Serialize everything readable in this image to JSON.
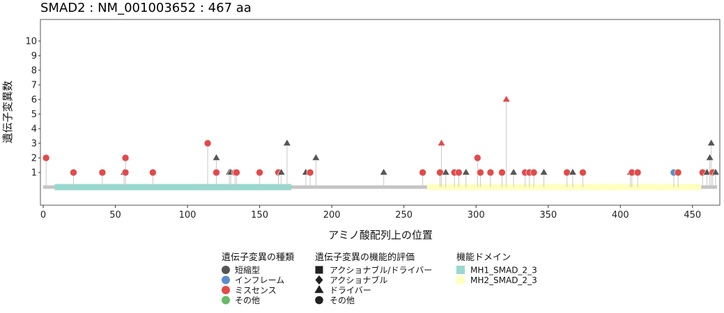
{
  "title": "SMAD2 : NM_001003652 : 467 aa",
  "chart_data": {
    "type": "lollipop",
    "protein_length": 467,
    "xlabel": "アミノ酸配列上の位置",
    "ylabel": "遺伝子変異数",
    "xlim": [
      0,
      467
    ],
    "ylim": [
      0,
      10
    ],
    "xticks": [
      0,
      50,
      100,
      150,
      200,
      250,
      300,
      350,
      400,
      450
    ],
    "yticks": [
      1,
      2,
      3,
      4,
      5,
      6,
      7,
      8,
      9,
      10
    ],
    "grid": false,
    "legend_position": "bottom",
    "domains": [
      {
        "name": "MH1_SMAD_2_3",
        "start": 8,
        "end": 172,
        "color": "#99d8cf"
      },
      {
        "name": "MH2_SMAD_2_3",
        "start": 266,
        "end": 456,
        "color": "#ffffc0"
      }
    ],
    "mutations": [
      {
        "x": 2,
        "y": 2,
        "type": "missense",
        "shape": "circle"
      },
      {
        "x": 21,
        "y": 1,
        "type": "missense",
        "shape": "circle"
      },
      {
        "x": 41,
        "y": 1,
        "type": "missense",
        "shape": "circle"
      },
      {
        "x": 56,
        "y": 1,
        "type": "truncating",
        "shape": "triangle"
      },
      {
        "x": 57,
        "y": 1,
        "type": "missense",
        "shape": "circle"
      },
      {
        "x": 57,
        "y": 2,
        "type": "truncating",
        "shape": "triangle"
      },
      {
        "x": 57,
        "y": 2,
        "type": "missense",
        "shape": "circle"
      },
      {
        "x": 76,
        "y": 1,
        "type": "missense",
        "shape": "circle"
      },
      {
        "x": 114,
        "y": 3,
        "type": "missense",
        "shape": "circle"
      },
      {
        "x": 120,
        "y": 2,
        "type": "truncating",
        "shape": "triangle"
      },
      {
        "x": 120,
        "y": 1,
        "type": "missense",
        "shape": "circle"
      },
      {
        "x": 129,
        "y": 1,
        "type": "truncating",
        "shape": "triangle"
      },
      {
        "x": 130,
        "y": 1,
        "type": "truncating",
        "shape": "triangle"
      },
      {
        "x": 133,
        "y": 1,
        "type": "missense",
        "shape": "circle"
      },
      {
        "x": 134,
        "y": 1,
        "type": "missense",
        "shape": "circle"
      },
      {
        "x": 150,
        "y": 1,
        "type": "missense",
        "shape": "circle"
      },
      {
        "x": 163,
        "y": 1,
        "type": "missense",
        "shape": "circle"
      },
      {
        "x": 165,
        "y": 1,
        "type": "truncating",
        "shape": "triangle"
      },
      {
        "x": 169,
        "y": 3,
        "type": "truncating",
        "shape": "triangle"
      },
      {
        "x": 182,
        "y": 1,
        "type": "truncating",
        "shape": "triangle"
      },
      {
        "x": 185,
        "y": 1,
        "type": "missense",
        "shape": "circle"
      },
      {
        "x": 189,
        "y": 2,
        "type": "truncating",
        "shape": "triangle"
      },
      {
        "x": 236,
        "y": 1,
        "type": "truncating",
        "shape": "triangle"
      },
      {
        "x": 263,
        "y": 1,
        "type": "missense",
        "shape": "circle"
      },
      {
        "x": 275,
        "y": 1,
        "type": "missense",
        "shape": "circle"
      },
      {
        "x": 276,
        "y": 3,
        "type": "missense",
        "shape": "triangle"
      },
      {
        "x": 279,
        "y": 1,
        "type": "truncating",
        "shape": "triangle"
      },
      {
        "x": 285,
        "y": 1,
        "type": "missense",
        "shape": "circle"
      },
      {
        "x": 288,
        "y": 1,
        "type": "missense",
        "shape": "circle"
      },
      {
        "x": 293,
        "y": 1,
        "type": "truncating",
        "shape": "triangle"
      },
      {
        "x": 301,
        "y": 2,
        "type": "missense",
        "shape": "circle"
      },
      {
        "x": 303,
        "y": 1,
        "type": "missense",
        "shape": "circle"
      },
      {
        "x": 310,
        "y": 1,
        "type": "missense",
        "shape": "circle"
      },
      {
        "x": 318,
        "y": 1,
        "type": "missense",
        "shape": "circle"
      },
      {
        "x": 321,
        "y": 6,
        "type": "missense",
        "shape": "triangle"
      },
      {
        "x": 326,
        "y": 1,
        "type": "truncating",
        "shape": "triangle"
      },
      {
        "x": 334,
        "y": 1,
        "type": "missense",
        "shape": "circle"
      },
      {
        "x": 337,
        "y": 1,
        "type": "missense",
        "shape": "circle"
      },
      {
        "x": 340,
        "y": 1,
        "type": "missense",
        "shape": "circle"
      },
      {
        "x": 347,
        "y": 1,
        "type": "truncating",
        "shape": "triangle"
      },
      {
        "x": 363,
        "y": 1,
        "type": "missense",
        "shape": "circle"
      },
      {
        "x": 367,
        "y": 1,
        "type": "truncating",
        "shape": "triangle"
      },
      {
        "x": 374,
        "y": 1,
        "type": "missense",
        "shape": "circle"
      },
      {
        "x": 407,
        "y": 1,
        "type": "truncating",
        "shape": "triangle"
      },
      {
        "x": 408,
        "y": 1,
        "type": "missense",
        "shape": "circle"
      },
      {
        "x": 412,
        "y": 1,
        "type": "missense",
        "shape": "circle"
      },
      {
        "x": 437,
        "y": 1,
        "type": "inframe",
        "shape": "circle"
      },
      {
        "x": 440,
        "y": 1,
        "type": "missense",
        "shape": "circle"
      },
      {
        "x": 457,
        "y": 1,
        "type": "missense",
        "shape": "circle"
      },
      {
        "x": 460,
        "y": 1,
        "type": "truncating",
        "shape": "triangle"
      },
      {
        "x": 462,
        "y": 2,
        "type": "truncating",
        "shape": "triangle"
      },
      {
        "x": 463,
        "y": 3,
        "type": "truncating",
        "shape": "triangle"
      },
      {
        "x": 464,
        "y": 1,
        "type": "missense",
        "shape": "circle"
      },
      {
        "x": 466,
        "y": 1,
        "type": "truncating",
        "shape": "triangle"
      }
    ],
    "colors": {
      "truncating": "#555555",
      "inframe": "#5a8fcc",
      "missense": "#e34a4a",
      "other": "#66bb66",
      "backbone": "#c4c4c4",
      "stem": "#c8c8c8"
    },
    "legend": {
      "type_title": "遺伝子変異の種類",
      "types": [
        {
          "key": "truncating",
          "label": "短縮型"
        },
        {
          "key": "inframe",
          "label": "インフレーム"
        },
        {
          "key": "missense",
          "label": "ミスセンス"
        },
        {
          "key": "other",
          "label": "その他"
        }
      ],
      "function_title": "遺伝子変異の機能的評価",
      "functions": [
        {
          "shape": "square",
          "label": "アクショナブル/ドライバー"
        },
        {
          "shape": "diamond",
          "label": "アクショナブル"
        },
        {
          "shape": "triangle",
          "label": "ドライバー"
        },
        {
          "shape": "circle",
          "label": "その他"
        }
      ],
      "domain_title": "機能ドメイン",
      "domains": [
        "MH1_SMAD_2_3",
        "MH2_SMAD_2_3"
      ]
    }
  }
}
